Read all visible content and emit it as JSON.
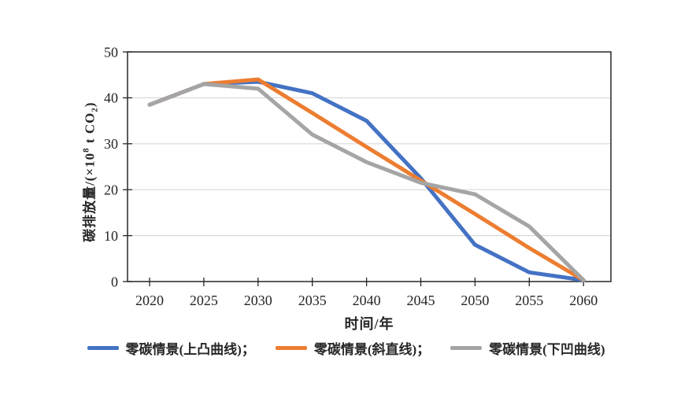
{
  "chart_data": {
    "type": "line",
    "title": "",
    "x": [
      2020,
      2025,
      2030,
      2035,
      2040,
      2045,
      2050,
      2055,
      2060
    ],
    "series": [
      {
        "name": "零碳情景(上凸曲线)",
        "legend_label": "零碳情景(上凸曲线)；",
        "color": "#4472C4",
        "values": [
          38.5,
          43,
          43.5,
          41,
          35,
          22.5,
          8,
          2,
          0.3
        ]
      },
      {
        "name": "零碳情景(斜直线)",
        "legend_label": "零碳情景(斜直线)；",
        "color": "#ED7D31",
        "values": [
          38.5,
          43,
          44,
          36.7,
          29.3,
          22,
          14.7,
          7.3,
          0.3
        ]
      },
      {
        "name": "零碳情景(下凹曲线)",
        "legend_label": "零碳情景(下凹曲线)",
        "color": "#A5A5A5",
        "values": [
          38.5,
          43,
          42,
          32,
          26,
          21.5,
          19,
          12,
          0.3
        ]
      }
    ],
    "xlabel": "时间/年",
    "ylabel": "碳排放量/(×10⁸ t CO₂)",
    "ylabel_parts": {
      "prefix": "碳排放量/(×10",
      "sup": "8",
      "mid": " t CO",
      "sub": "2",
      "suffix": ")"
    },
    "ylim": [
      0,
      50
    ],
    "ytick_step": 10,
    "xtick_labels": [
      "2020",
      "2025",
      "2030",
      "2035",
      "2040",
      "2045",
      "2050",
      "2055",
      "2060"
    ],
    "ytick_labels": [
      "0",
      "10",
      "20",
      "30",
      "40",
      "50"
    ],
    "grid": "horizontal-only",
    "legend_position": "bottom",
    "colors": {
      "axis": "#262626",
      "gridline": "#D9D9D9",
      "background": "#FFFFFF",
      "tick_text": "#262626"
    }
  }
}
